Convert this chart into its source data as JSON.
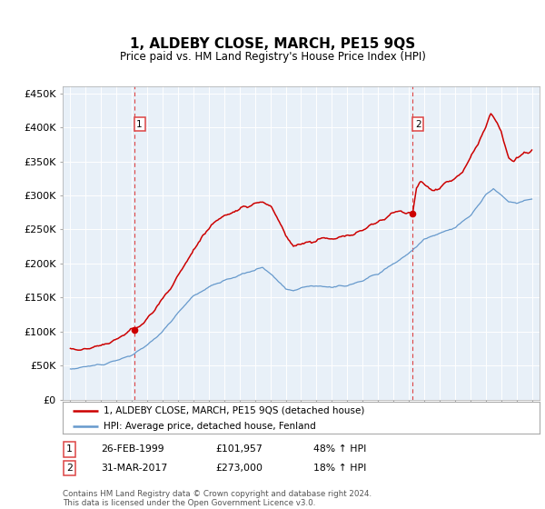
{
  "title": "1, ALDEBY CLOSE, MARCH, PE15 9QS",
  "subtitle": "Price paid vs. HM Land Registry's House Price Index (HPI)",
  "legend_line1": "1, ALDEBY CLOSE, MARCH, PE15 9QS (detached house)",
  "legend_line2": "HPI: Average price, detached house, Fenland",
  "sale1_date": "26-FEB-1999",
  "sale1_price": "£101,957",
  "sale1_hpi": "48% ↑ HPI",
  "sale1_year": 1999.15,
  "sale1_value": 101957,
  "sale2_date": "31-MAR-2017",
  "sale2_price": "£273,000",
  "sale2_hpi": "18% ↑ HPI",
  "sale2_year": 2017.25,
  "sale2_value": 273000,
  "red_color": "#cc0000",
  "blue_color": "#6699cc",
  "vline_color": "#dd4444",
  "background_color": "#e8f0f8",
  "plot_bg": "#e8f0f8",
  "outer_bg": "#ffffff",
  "grid_color": "#ffffff",
  "footer": "Contains HM Land Registry data © Crown copyright and database right 2024.\nThis data is licensed under the Open Government Licence v3.0.",
  "ylim": [
    0,
    460000
  ],
  "xlim_start": 1994.5,
  "xlim_end": 2025.5
}
